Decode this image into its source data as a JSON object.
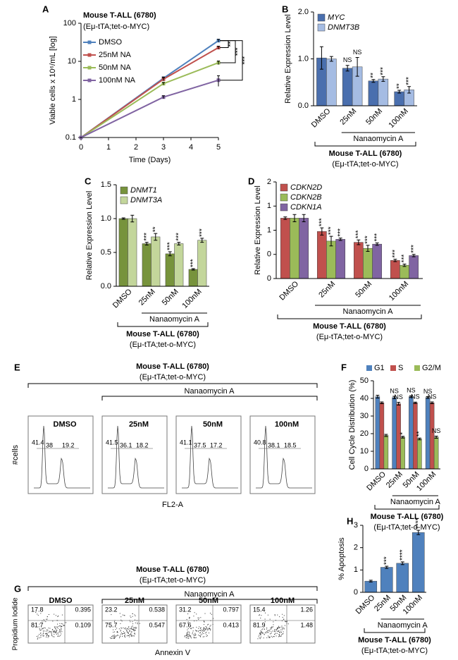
{
  "chart_data": [
    {
      "type": "line",
      "label": "A",
      "title": "Mouse T-ALL (6780)",
      "subtitle": "(Eμ-tTA;tet-o-MYC)",
      "xlabel": "Time (Days)",
      "ylabel": "Viable cells x 10⁶/mL [log]",
      "x": [
        0,
        3,
        5
      ],
      "xlim": [
        0,
        5
      ],
      "xticks": [
        0,
        1,
        2,
        3,
        4,
        5
      ],
      "ylim": [
        0.1,
        100
      ],
      "yticks": [
        0.1,
        1,
        10,
        100
      ],
      "log_y": true,
      "legend": "top-left",
      "series": [
        {
          "name": "DMSO",
          "color": "#4f81bd",
          "values": [
            0.1,
            3.6,
            35
          ],
          "errors": [
            0,
            0.3,
            3
          ]
        },
        {
          "name": "25nM NA",
          "color": "#c0504d",
          "values": [
            0.1,
            3.4,
            23
          ],
          "errors": [
            0,
            0.3,
            2
          ],
          "sig_label": "**"
        },
        {
          "name": "50nM NA",
          "color": "#9bbb59",
          "values": [
            0.1,
            2.6,
            9.2
          ],
          "errors": [
            0,
            0.2,
            1
          ],
          "sig_label": "***"
        },
        {
          "name": "100nM NA",
          "color": "#8064a2",
          "values": [
            0.1,
            1.15,
            3.2
          ],
          "errors": [
            0,
            0.1,
            1
          ],
          "sig_label": "***"
        }
      ]
    },
    {
      "type": "bar",
      "label": "B",
      "ylabel": "Relative Expression Level",
      "categories": [
        "DMSO",
        "25nM",
        "50nM",
        "100nM"
      ],
      "ylim": [
        0,
        2
      ],
      "yticks": [
        {
          "value": 0,
          "label": "0.0"
        },
        {
          "value": 1,
          "label": "1.0"
        },
        {
          "value": 2,
          "label": "2.0"
        }
      ],
      "legend": "top-left",
      "group_label": "Nanaomycin A",
      "title": "Mouse T-ALL (6780)",
      "subtitle": "(Eμ-tTA;tet-o-MYC)",
      "series": [
        {
          "name": "MYC",
          "color": "#4a6fae",
          "values": [
            1.02,
            0.8,
            0.53,
            0.3
          ],
          "errors": [
            0.24,
            0.06,
            0.03,
            0.03
          ],
          "sig_labels": [
            null,
            "NS",
            "**",
            "**"
          ]
        },
        {
          "name": "DNMT3B",
          "color": "#a5bce3",
          "values": [
            1,
            0.83,
            0.57,
            0.34
          ],
          "errors": [
            0.05,
            0.2,
            0.05,
            0.07
          ],
          "sig_labels": [
            null,
            "NS",
            "***",
            "***"
          ]
        }
      ]
    },
    {
      "type": "bar",
      "label": "C",
      "ylabel": "Relative Expression Level",
      "categories": [
        "DMSO",
        "25nM",
        "50nM",
        "100nM"
      ],
      "ylim": [
        0,
        1.5
      ],
      "yticks": [
        {
          "value": 0,
          "label": "0.0"
        },
        {
          "value": 0.5,
          "label": "0.5"
        },
        {
          "value": 1,
          "label": "1.0"
        },
        {
          "value": 1.5,
          "label": "1.5"
        }
      ],
      "legend": "top-left",
      "group_label": "Nanaomycin A",
      "title": "Mouse T-ALL (6780)",
      "subtitle": "(Eμ-tTA;tet-o-MYC)",
      "series": [
        {
          "name": "DNMT1",
          "color": "#77933c",
          "values": [
            1,
            0.63,
            0.48,
            0.25
          ],
          "errors": [
            0.01,
            0.02,
            0.03,
            0.01
          ],
          "sig_labels": [
            null,
            "***",
            "***",
            "***"
          ]
        },
        {
          "name": "DNMT3A",
          "color": "#c3d69b",
          "values": [
            1,
            0.73,
            0.63,
            0.68
          ],
          "errors": [
            0.05,
            0.05,
            0.02,
            0.03
          ],
          "sig_labels": [
            null,
            "**",
            "***",
            "***"
          ]
        }
      ]
    },
    {
      "type": "bar",
      "label": "D",
      "ylabel": "Relative Expression Level",
      "categories": [
        "DMSO",
        "25nM",
        "50nM",
        "100nM"
      ],
      "ylim": [
        0,
        1.6
      ],
      "yticks": [
        {
          "value": 0,
          "label": "0"
        },
        {
          "value": 0.4,
          "label": "0"
        },
        {
          "value": 0.8,
          "label": "1"
        },
        {
          "value": 1.2,
          "label": "1"
        },
        {
          "value": 1.6,
          "label": "2"
        }
      ],
      "legend": "top-left",
      "group_label": "Nanaomycin A",
      "title": "Mouse T-ALL (6780)",
      "subtitle": "(Eμ-tTA;tet-o-MYC)",
      "series": [
        {
          "name": "CDKN2D",
          "color": "#c0504d",
          "values": [
            1,
            0.78,
            0.6,
            0.3
          ],
          "errors": [
            0.02,
            0.06,
            0.04,
            0.02
          ],
          "sig_labels": [
            null,
            "***",
            "***",
            "***"
          ]
        },
        {
          "name": "CDKN2B",
          "color": "#9bbb59",
          "values": [
            1,
            0.62,
            0.5,
            0.22
          ],
          "errors": [
            0.06,
            0.08,
            0.05,
            0.02
          ],
          "sig_labels": [
            null,
            "***",
            "***",
            "***"
          ]
        },
        {
          "name": "CDKN1A",
          "color": "#8064a2",
          "values": [
            1,
            0.65,
            0.57,
            0.38
          ],
          "errors": [
            0.06,
            0.02,
            0.02,
            0.02
          ],
          "sig_labels": [
            null,
            "***",
            "***",
            "***"
          ]
        }
      ]
    },
    {
      "type": "bar",
      "label": "F",
      "ylabel": "Cell Cycle Distribution (%)",
      "categories": [
        "DMSO",
        "25nM",
        "50nM",
        "100nM"
      ],
      "ylim": [
        0,
        50
      ],
      "yticks": [
        0,
        10,
        20,
        30,
        40,
        50
      ],
      "legend": "top",
      "group_label": "Nanaomycin A",
      "title": "Mouse T-ALL (6780)",
      "subtitle": "(Eμ-tTA;tet-o-MYC)",
      "series": [
        {
          "name": "G1",
          "color": "#4f81bd",
          "values": [
            41,
            40.5,
            41,
            40.5
          ],
          "errors": [
            0.8,
            0.7,
            0.5,
            0.5
          ],
          "sig_labels": [
            null,
            "NS",
            "NS",
            "NS"
          ]
        },
        {
          "name": "S",
          "color": "#c0504d",
          "values": [
            37.5,
            37,
            37.5,
            37.5
          ],
          "errors": [
            0.5,
            0.8,
            0.4,
            0.5
          ],
          "sig_labels": [
            null,
            "NS",
            "NS",
            "NS"
          ]
        },
        {
          "name": "G2/M",
          "color": "#9bbb59",
          "values": [
            19,
            18,
            17,
            18
          ],
          "errors": [
            0.6,
            0.5,
            0.5,
            0.6
          ],
          "sig_labels": [
            null,
            "*",
            "**",
            "NS"
          ]
        }
      ]
    },
    {
      "type": "bar",
      "label": "H",
      "ylabel": "% Apoptosis",
      "categories": [
        "DMSO",
        "25nM",
        "50nM",
        "100nM"
      ],
      "ylim": [
        0,
        3
      ],
      "yticks": [
        0,
        1,
        2,
        3
      ],
      "group_label": "Nanaomycin A",
      "title": "Mouse T-ALL (6780)",
      "subtitle": "(Eμ-tTA;tet-o-MYC)",
      "color": "#4f81bd",
      "values": [
        0.5,
        1.12,
        1.3,
        2.68
      ],
      "errors": [
        0.04,
        0.05,
        0.06,
        0.1
      ],
      "sig_labels": [
        null,
        "***",
        "****",
        "****"
      ]
    }
  ],
  "flow_histograms": {
    "label": "E",
    "title": "Mouse T-ALL (6780)",
    "subtitle": "(Eμ-tTA;tet-o-MYC)",
    "group_label": "Nanaomycin A",
    "ylabel": "#cells",
    "xlabel": "FL2-A",
    "panels": [
      {
        "name": "DMSO",
        "g1": 41.4,
        "s": 38,
        "g2m": 19.2
      },
      {
        "name": "25nM",
        "g1": 41.5,
        "s": 36.1,
        "g2m": 18.2
      },
      {
        "name": "50nM",
        "g1": 41.1,
        "s": 37.5,
        "g2m": 17.2
      },
      {
        "name": "100nM",
        "g1": 40.8,
        "s": 38.1,
        "g2m": 18.5
      }
    ]
  },
  "flow_scatter": {
    "label": "G",
    "title": "Mouse T-ALL (6780)",
    "subtitle": "(Eμ-tTA;tet-o-MYC)",
    "group_label": "Nanaomycin A",
    "ylabel": "Propidium Iodide",
    "xlabel": "Annexin V",
    "panels": [
      {
        "name": "DMSO",
        "quadrants": [
          17.8,
          0.395,
          81.7,
          0.109
        ]
      },
      {
        "name": "25nM",
        "quadrants": [
          23.2,
          0.538,
          75.7,
          0.547
        ]
      },
      {
        "name": "50nM",
        "quadrants": [
          31.2,
          0.797,
          67.6,
          0.413
        ]
      },
      {
        "name": "100nM",
        "quadrants": [
          15.4,
          1.26,
          81.9,
          1.48
        ]
      }
    ]
  }
}
